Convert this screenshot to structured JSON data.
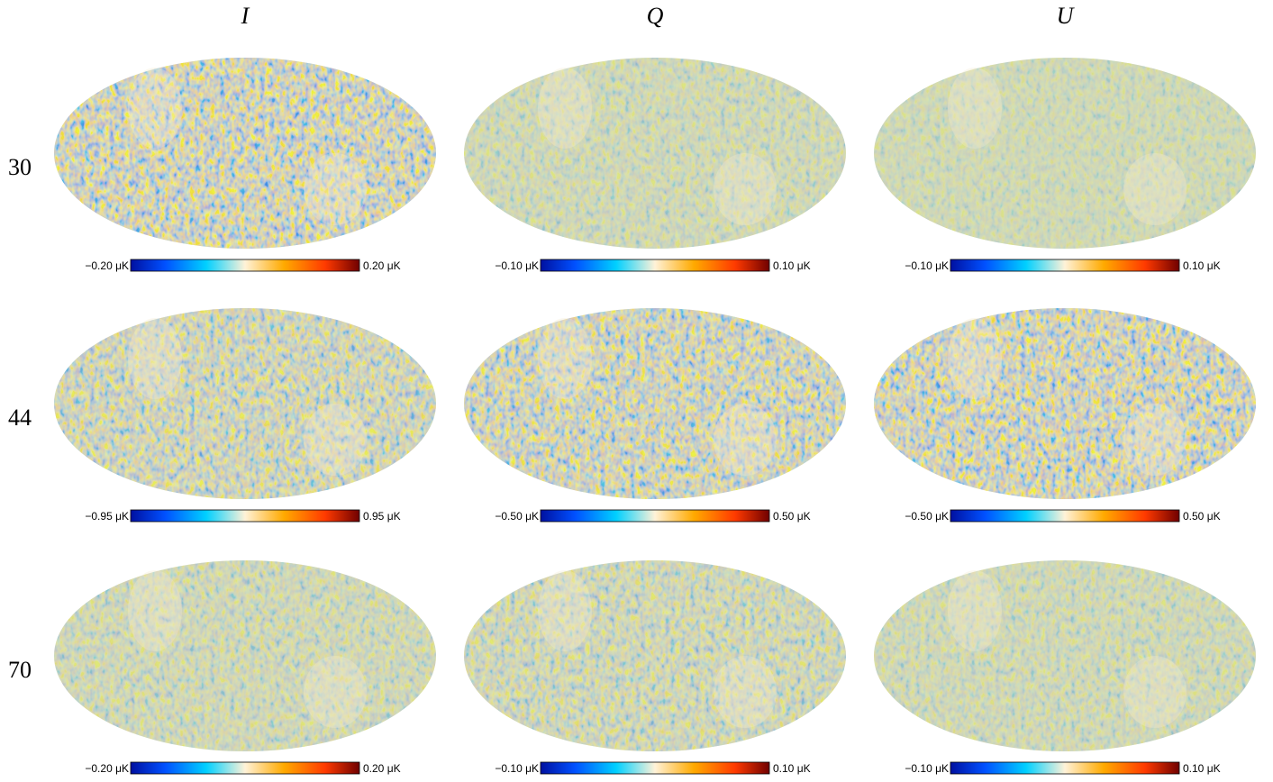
{
  "columns": [
    "I",
    "Q",
    "U"
  ],
  "rows": [
    {
      "label": "30",
      "panels": [
        {
          "min": "−0.20 μK",
          "max": "0.20 μK"
        },
        {
          "min": "−0.10 μK",
          "max": "0.10 μK"
        },
        {
          "min": "−0.10 μK",
          "max": "0.10 μK"
        }
      ]
    },
    {
      "label": "44",
      "panels": [
        {
          "min": "−0.95 μK",
          "max": "0.95 μK"
        },
        {
          "min": "−0.50 μK",
          "max": "0.50 μK"
        },
        {
          "min": "−0.50 μK",
          "max": "0.50 μK"
        }
      ]
    },
    {
      "label": "70",
      "panels": [
        {
          "min": "−0.20 μK",
          "max": "0.20 μK"
        },
        {
          "min": "−0.10 μK",
          "max": "0.10 μK"
        },
        {
          "min": "−0.10 μK",
          "max": "0.10 μK"
        }
      ]
    }
  ]
}
